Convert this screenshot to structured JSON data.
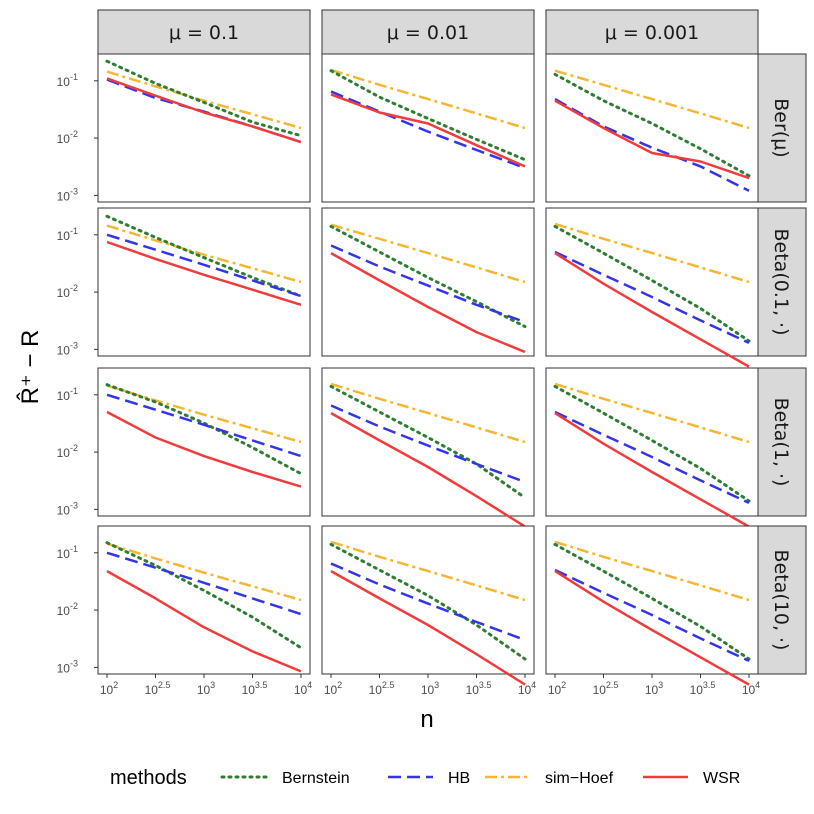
{
  "chart_data": {
    "type": "line",
    "xlabel": "n",
    "ylabel": "R̂⁺ − R",
    "x_scale": "log10",
    "y_scale": "log10",
    "x": [
      100,
      316.23,
      1000,
      3162.28,
      10000
    ],
    "xlim": [
      100,
      10000
    ],
    "ylim": [
      0.0009,
      0.25
    ],
    "x_ticks": [
      {
        "base": "10",
        "exp": "2",
        "value": 100
      },
      {
        "base": "10",
        "exp": "2.5",
        "value": 316.23
      },
      {
        "base": "10",
        "exp": "3",
        "value": 1000
      },
      {
        "base": "10",
        "exp": "3.5",
        "value": 3162.28
      },
      {
        "base": "10",
        "exp": "4",
        "value": 10000
      }
    ],
    "y_ticks": [
      {
        "base": "10",
        "exp": "-1",
        "value": 0.1
      },
      {
        "base": "10",
        "exp": "-2",
        "value": 0.01
      },
      {
        "base": "10",
        "exp": "-3",
        "value": 0.001
      }
    ],
    "columns": [
      "μ = 0.1",
      "μ = 0.01",
      "μ = 0.001"
    ],
    "rows": [
      "Ber(μ)",
      "Beta(0.1, ·)",
      "Beta(1, ·)",
      "Beta(10, ·)"
    ],
    "legend_title": "methods",
    "legend_position": "bottom",
    "grid": false,
    "series_styles": [
      {
        "name": "Bernstein",
        "color": "#2e7d32",
        "dash": "dotted"
      },
      {
        "name": "HB",
        "color": "#3535e8",
        "dash": "dashed"
      },
      {
        "name": "sim−Hoef",
        "color": "#f5b731",
        "dash": "dotdash"
      },
      {
        "name": "WSR",
        "color": "#f03c3c",
        "dash": "solid"
      }
    ],
    "panels": [
      {
        "row": 0,
        "col": 0,
        "series": [
          {
            "name": "Bernstein",
            "values": [
              0.22,
              0.09,
              0.042,
              0.019,
              0.011
            ]
          },
          {
            "name": "HB",
            "values": [
              0.105,
              0.05,
              0.029,
              0.016,
              0.0085
            ]
          },
          {
            "name": "sim−Hoef",
            "values": [
              0.145,
              0.08,
              0.045,
              0.026,
              0.015
            ]
          },
          {
            "name": "WSR",
            "values": [
              0.11,
              0.055,
              0.028,
              0.016,
              0.0085
            ]
          }
        ]
      },
      {
        "row": 0,
        "col": 1,
        "series": [
          {
            "name": "Bernstein",
            "values": [
              0.15,
              0.052,
              0.022,
              0.0095,
              0.0042
            ]
          },
          {
            "name": "HB",
            "values": [
              0.065,
              0.029,
              0.013,
              0.0062,
              0.003
            ]
          },
          {
            "name": "sim−Hoef",
            "values": [
              0.155,
              0.085,
              0.048,
              0.027,
              0.015
            ]
          },
          {
            "name": "WSR",
            "values": [
              0.058,
              0.028,
              0.018,
              0.0075,
              0.0032
            ]
          }
        ]
      },
      {
        "row": 0,
        "col": 2,
        "series": [
          {
            "name": "Bernstein",
            "values": [
              0.13,
              0.045,
              0.018,
              0.0065,
              0.0022
            ]
          },
          {
            "name": "HB",
            "values": [
              0.048,
              0.016,
              0.0068,
              0.0032,
              0.0012
            ]
          },
          {
            "name": "sim−Hoef",
            "values": [
              0.15,
              0.085,
              0.048,
              0.027,
              0.015
            ]
          },
          {
            "name": "WSR",
            "values": [
              0.045,
              0.015,
              0.0055,
              0.0039,
              0.002
            ]
          }
        ]
      },
      {
        "row": 1,
        "col": 0,
        "series": [
          {
            "name": "Bernstein",
            "values": [
              0.21,
              0.09,
              0.04,
              0.018,
              0.0085
            ]
          },
          {
            "name": "HB",
            "values": [
              0.1,
              0.055,
              0.03,
              0.016,
              0.0085
            ]
          },
          {
            "name": "sim−Hoef",
            "values": [
              0.145,
              0.08,
              0.045,
              0.026,
              0.015
            ]
          },
          {
            "name": "WSR",
            "values": [
              0.075,
              0.038,
              0.02,
              0.011,
              0.006
            ]
          }
        ]
      },
      {
        "row": 1,
        "col": 1,
        "series": [
          {
            "name": "Bernstein",
            "values": [
              0.14,
              0.05,
              0.018,
              0.0068,
              0.0025
            ]
          },
          {
            "name": "HB",
            "values": [
              0.065,
              0.028,
              0.013,
              0.006,
              0.003
            ]
          },
          {
            "name": "sim−Hoef",
            "values": [
              0.15,
              0.085,
              0.048,
              0.027,
              0.015
            ]
          },
          {
            "name": "WSR",
            "values": [
              0.048,
              0.016,
              0.0055,
              0.002,
              0.0009
            ]
          }
        ]
      },
      {
        "row": 1,
        "col": 2,
        "series": [
          {
            "name": "Bernstein",
            "values": [
              0.14,
              0.048,
              0.016,
              0.0052,
              0.0014
            ]
          },
          {
            "name": "HB",
            "values": [
              0.05,
              0.02,
              0.0082,
              0.0032,
              0.0013
            ]
          },
          {
            "name": "sim−Hoef",
            "values": [
              0.155,
              0.085,
              0.048,
              0.027,
              0.015
            ]
          },
          {
            "name": "WSR",
            "values": [
              0.048,
              0.014,
              0.0045,
              0.0015,
              0.0005
            ]
          }
        ]
      },
      {
        "row": 2,
        "col": 0,
        "series": [
          {
            "name": "Bernstein",
            "values": [
              0.15,
              0.075,
              0.032,
              0.012,
              0.0042
            ]
          },
          {
            "name": "HB",
            "values": [
              0.1,
              0.055,
              0.03,
              0.016,
              0.0085
            ]
          },
          {
            "name": "sim−Hoef",
            "values": [
              0.145,
              0.08,
              0.045,
              0.026,
              0.015
            ]
          },
          {
            "name": "WSR",
            "values": [
              0.05,
              0.018,
              0.0085,
              0.0045,
              0.0025
            ]
          }
        ]
      },
      {
        "row": 2,
        "col": 1,
        "series": [
          {
            "name": "Bernstein",
            "values": [
              0.14,
              0.05,
              0.018,
              0.0062,
              0.0016
            ]
          },
          {
            "name": "HB",
            "values": [
              0.065,
              0.028,
              0.013,
              0.0062,
              0.003
            ]
          },
          {
            "name": "sim−Hoef",
            "values": [
              0.155,
              0.085,
              0.048,
              0.027,
              0.015
            ]
          },
          {
            "name": "WSR",
            "values": [
              0.048,
              0.016,
              0.0055,
              0.0017,
              0.0005
            ]
          }
        ]
      },
      {
        "row": 2,
        "col": 2,
        "series": [
          {
            "name": "Bernstein",
            "values": [
              0.14,
              0.048,
              0.016,
              0.0052,
              0.0014
            ]
          },
          {
            "name": "HB",
            "values": [
              0.05,
              0.02,
              0.0082,
              0.0032,
              0.0013
            ]
          },
          {
            "name": "sim−Hoef",
            "values": [
              0.155,
              0.085,
              0.048,
              0.027,
              0.015
            ]
          },
          {
            "name": "WSR",
            "values": [
              0.048,
              0.014,
              0.0045,
              0.0015,
              0.0005
            ]
          }
        ]
      },
      {
        "row": 3,
        "col": 0,
        "series": [
          {
            "name": "Bernstein",
            "values": [
              0.15,
              0.06,
              0.022,
              0.0075,
              0.0022
            ]
          },
          {
            "name": "HB",
            "values": [
              0.1,
              0.055,
              0.03,
              0.016,
              0.0085
            ]
          },
          {
            "name": "sim−Hoef",
            "values": [
              0.145,
              0.08,
              0.045,
              0.026,
              0.015
            ]
          },
          {
            "name": "WSR",
            "values": [
              0.048,
              0.016,
              0.005,
              0.0019,
              0.00085
            ]
          }
        ]
      },
      {
        "row": 3,
        "col": 1,
        "series": [
          {
            "name": "Bernstein",
            "values": [
              0.14,
              0.05,
              0.018,
              0.0055,
              0.0014
            ]
          },
          {
            "name": "HB",
            "values": [
              0.065,
              0.028,
              0.013,
              0.0062,
              0.003
            ]
          },
          {
            "name": "sim−Hoef",
            "values": [
              0.155,
              0.085,
              0.048,
              0.027,
              0.015
            ]
          },
          {
            "name": "WSR",
            "values": [
              0.048,
              0.016,
              0.0055,
              0.0017,
              0.0005
            ]
          }
        ]
      },
      {
        "row": 3,
        "col": 2,
        "series": [
          {
            "name": "Bernstein",
            "values": [
              0.14,
              0.048,
              0.016,
              0.0052,
              0.0014
            ]
          },
          {
            "name": "HB",
            "values": [
              0.05,
              0.02,
              0.0082,
              0.0032,
              0.0013
            ]
          },
          {
            "name": "sim−Hoef",
            "values": [
              0.155,
              0.085,
              0.048,
              0.027,
              0.015
            ]
          },
          {
            "name": "WSR",
            "values": [
              0.048,
              0.014,
              0.0045,
              0.0015,
              0.0005
            ]
          }
        ]
      }
    ]
  }
}
